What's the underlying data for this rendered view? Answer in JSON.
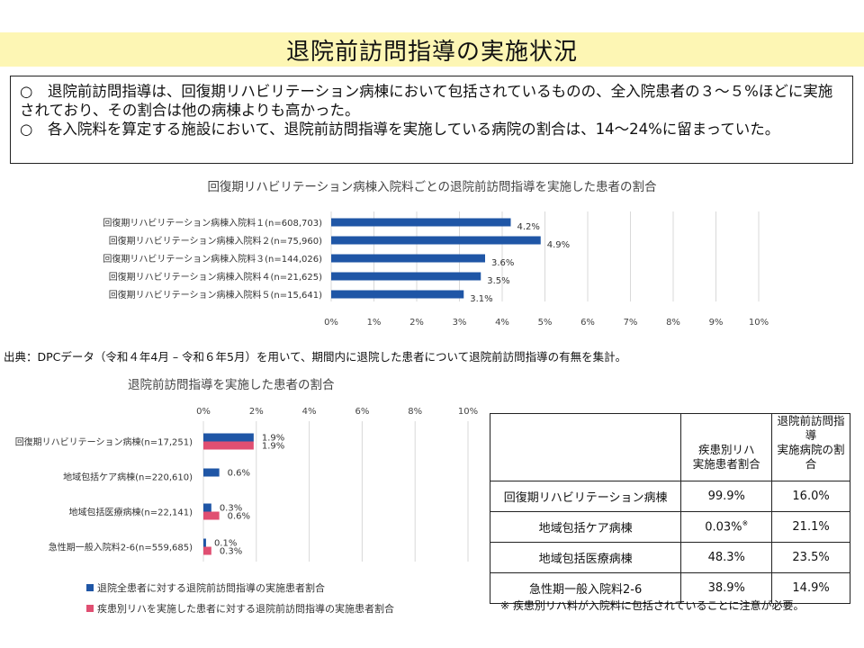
{
  "page_title": "退院前訪問指導の実施状況",
  "summary": [
    "○　退院前訪問指導は、回復期リハビリテーション病棟において包括されているものの、全入院患者の３～５%ほどに実施されており、その割合は他の病棟よりも高かった。",
    "○　各入院料を算定する施設において、退院前訪問指導を実施している病院の割合は、14～24%に留まっていた。"
  ],
  "source_note": "出典：DPCデータ（令和４年4月 – 令和６年5月）を用いて、期間内に退院した患者について退院前訪問指導の有無を集計。",
  "colors": {
    "blue": "#1f56a6",
    "pink": "#e04f72",
    "grid": "#d9d9d9"
  },
  "chart_data": [
    {
      "type": "bar",
      "orientation": "horizontal",
      "title": "回復期リハビリテーション病棟入院料ごとの退院前訪問指導を実施した患者の割合",
      "categories": [
        "回復期リハビリテーション病棟入院料１(n=608,703)",
        "回復期リハビリテーション病棟入院料２(n=75,960)",
        "回復期リハビリテーション病棟入院料３(n=144,026)",
        "回復期リハビリテーション病棟入院料４(n=21,625)",
        "回復期リハビリテーション病棟入院料５(n=15,641)"
      ],
      "series": [
        {
          "values": [
            4.2,
            4.9,
            3.6,
            3.5,
            3.1
          ],
          "labels": [
            "4.2%",
            "4.9%",
            "3.6%",
            "3.5%",
            "3.1%"
          ]
        }
      ],
      "xlim": [
        0,
        10
      ],
      "ticks": [
        "0%",
        "1%",
        "2%",
        "3%",
        "4%",
        "5%",
        "6%",
        "7%",
        "8%",
        "9%",
        "10%"
      ],
      "grid": true
    },
    {
      "type": "bar",
      "orientation": "horizontal",
      "title": "退院前訪問指導を実施した患者の割合",
      "categories": [
        "回復期リハビリテーション病棟(n=17,251)",
        "地域包括ケア病棟(n=220,610)",
        "地域包括医療病棟(n=22,141)",
        "急性期一般入院料2-6(n=559,685)"
      ],
      "series": [
        {
          "name": "退院全患者に対する退院前訪問指導の実施患者割合",
          "values": [
            1.9,
            0.6,
            0.3,
            0.1
          ],
          "labels": [
            "1.9%",
            "0.6%",
            "0.3%",
            "0.1%"
          ]
        },
        {
          "name": "疾患別リハを実施した患者に対する退院前訪問指導の実施患者割合",
          "values": [
            1.9,
            null,
            0.6,
            0.3
          ],
          "labels": [
            "1.9%",
            null,
            "0.6%",
            "0.3%"
          ]
        }
      ],
      "xlim": [
        0,
        10
      ],
      "ticks": [
        "0%",
        "2%",
        "4%",
        "6%",
        "8%",
        "10%"
      ],
      "legend": "bottom-left",
      "grid": true
    }
  ],
  "table": {
    "headers": [
      "",
      "疾患別リハ\n実施患者割合",
      "退院前訪問指導\n実施病院の割合"
    ],
    "rows": [
      {
        "name": "回復期リハビリテーション病棟",
        "c1": "99.9%",
        "c2": "16.0%"
      },
      {
        "name": "地域包括ケア病棟",
        "c1": "0.03%",
        "c1_mark": "※",
        "c2": "21.1%"
      },
      {
        "name": "地域包括医療病棟",
        "c1": "48.3%",
        "c2": "23.5%"
      },
      {
        "name": "急性期一般入院料2-6",
        "c1": "38.9%",
        "c2": "14.9%"
      }
    ],
    "note": "※ 疾患別リハ料が入院料に包括されていることに注意が必要。"
  }
}
